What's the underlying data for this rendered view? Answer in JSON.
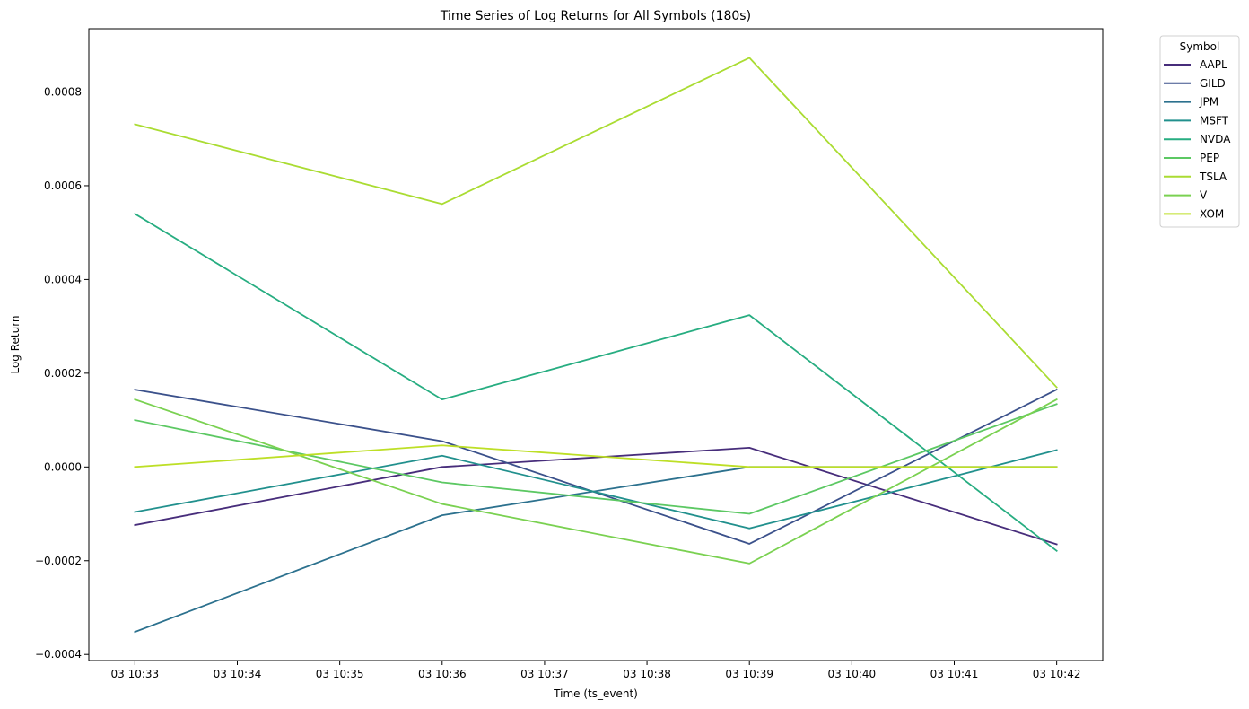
{
  "chart_data": {
    "type": "line",
    "title": "Time Series of Log Returns for All Symbols (180s)",
    "xlabel": "Time (ts_event)",
    "ylabel": "Log Return",
    "x_ticks": [
      "03 10:33",
      "03 10:34",
      "03 10:35",
      "03 10:36",
      "03 10:37",
      "03 10:38",
      "03 10:39",
      "03 10:40",
      "03 10:41",
      "03 10:42"
    ],
    "x_tick_values": [
      "10:33",
      "10:34",
      "10:35",
      "10:36",
      "10:37",
      "10:38",
      "10:39",
      "10:40",
      "10:41",
      "10:42"
    ],
    "x": [
      "10:33",
      "10:36",
      "10:39",
      "10:42"
    ],
    "xlim": [
      "10:32.55",
      "10:42.45"
    ],
    "y_ticks": [
      -0.0004,
      -0.0002,
      0.0,
      0.0002,
      0.0004,
      0.0006,
      0.0008
    ],
    "y_tick_labels": [
      "−0.0004",
      "−0.0002",
      "0.0000",
      "0.0002",
      "0.0004",
      "0.0006",
      "0.0008"
    ],
    "ylim": [
      -0.000413,
      0.000935
    ],
    "grid": false,
    "legend": {
      "title": "Symbol",
      "placement": "outside-top-right"
    },
    "series": [
      {
        "name": "AAPL",
        "color": "#472d7b",
        "values": [
          -0.000124,
          0.0,
          4.1e-05,
          -0.000165
        ]
      },
      {
        "name": "GILD",
        "color": "#3b518b",
        "values": [
          0.000165,
          5.5e-05,
          -0.000164,
          0.000165
        ]
      },
      {
        "name": "JPM",
        "color": "#2c718e",
        "values": [
          -0.000352,
          -0.000103,
          0.0,
          0.0
        ]
      },
      {
        "name": "MSFT",
        "color": "#21908d",
        "values": [
          -9.6e-05,
          2.4e-05,
          -0.000131,
          3.6e-05
        ]
      },
      {
        "name": "NVDA",
        "color": "#27ad81",
        "values": [
          0.00054,
          0.000144,
          0.000324,
          -0.000179
        ]
      },
      {
        "name": "PEP",
        "color": "#5cc863",
        "values": [
          0.0001,
          -3.3e-05,
          -0.0001,
          0.000134
        ]
      },
      {
        "name": "TSLA",
        "color": "#aadc32",
        "values": [
          0.000731,
          0.000561,
          0.000873,
          0.00017
        ]
      },
      {
        "name": "V",
        "color": "#7ad151",
        "values": [
          0.000144,
          -7.9e-05,
          -0.000206,
          0.000144
        ]
      },
      {
        "name": "XOM",
        "color": "#bddf26",
        "values": [
          0.0,
          4.6e-05,
          0.0,
          0.0
        ]
      }
    ]
  }
}
